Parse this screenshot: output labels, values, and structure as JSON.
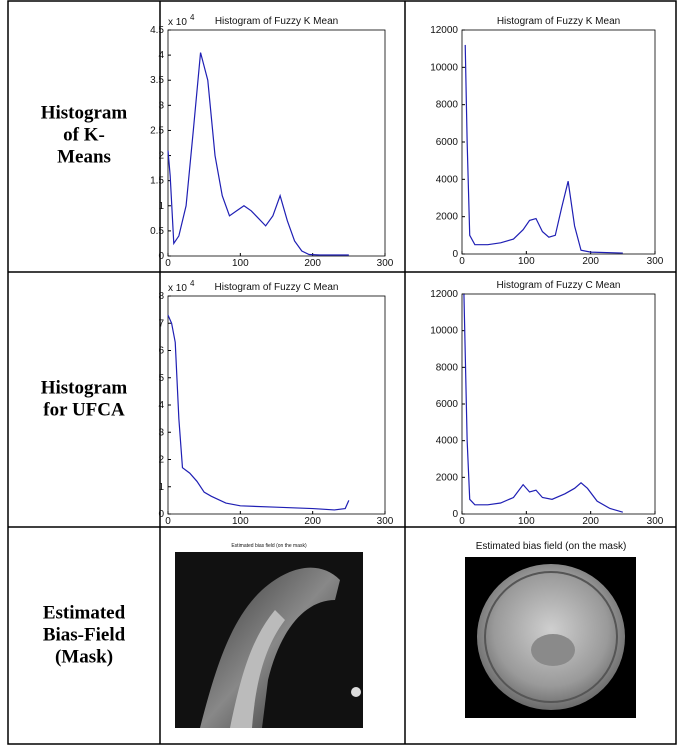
{
  "rows": [
    {
      "label": [
        "Histogram",
        "of K-",
        "Means"
      ],
      "cells": [
        {
          "type": "line",
          "title": "Histogram of Fuzzy K Mean",
          "color": "#1f1fb4",
          "y_offset_label": {
            "base": "x 10",
            "exponent": "4"
          },
          "x": [
            0,
            3,
            8,
            15,
            25,
            35,
            45,
            55,
            65,
            75,
            85,
            95,
            105,
            115,
            125,
            135,
            145,
            155,
            165,
            175,
            185,
            195,
            210,
            230,
            250
          ],
          "values": [
            2.1,
            1.6,
            0.25,
            0.4,
            1.0,
            2.5,
            4.05,
            3.5,
            2.0,
            1.2,
            0.8,
            0.9,
            1.0,
            0.9,
            0.75,
            0.6,
            0.8,
            1.2,
            0.7,
            0.3,
            0.1,
            0.03,
            0.02,
            0.02,
            0.02
          ],
          "xlim": [
            0,
            300
          ],
          "xticks": [
            0,
            100,
            200,
            300
          ],
          "ylim": [
            0,
            4.5
          ],
          "yticks": [
            0,
            0.5,
            1,
            1.5,
            2,
            2.5,
            3,
            3.5,
            4,
            4.5
          ]
        },
        {
          "type": "line",
          "title": "Histogram of Fuzzy K Mean",
          "color": "#1f1fb4",
          "x": [
            5,
            8,
            12,
            20,
            40,
            60,
            80,
            95,
            105,
            115,
            125,
            135,
            145,
            155,
            165,
            175,
            185,
            200,
            250
          ],
          "values": [
            11200,
            6000,
            1000,
            500,
            500,
            600,
            800,
            1300,
            1800,
            1900,
            1200,
            900,
            1000,
            2500,
            3900,
            1500,
            200,
            100,
            50
          ],
          "xlim": [
            0,
            300
          ],
          "xticks": [
            0,
            100,
            200,
            300
          ],
          "ylim": [
            0,
            12000
          ],
          "yticks": [
            0,
            2000,
            4000,
            6000,
            8000,
            10000,
            12000
          ]
        }
      ]
    },
    {
      "label": [
        "Histogram",
        "for UFCA"
      ],
      "cells": [
        {
          "type": "line",
          "title": "Histogram of Fuzzy C Mean",
          "color": "#1f1fb4",
          "y_offset_label": {
            "base": "x 10",
            "exponent": "4"
          },
          "x": [
            0,
            5,
            10,
            15,
            20,
            30,
            40,
            50,
            60,
            80,
            100,
            150,
            200,
            230,
            245,
            250
          ],
          "values": [
            7.3,
            7.0,
            6.3,
            3.5,
            1.7,
            1.5,
            1.2,
            0.8,
            0.65,
            0.4,
            0.3,
            0.25,
            0.2,
            0.15,
            0.2,
            0.5
          ],
          "xlim": [
            0,
            300
          ],
          "xticks": [
            0,
            100,
            200,
            300
          ],
          "ylim": [
            0,
            8
          ],
          "yticks": [
            0,
            1,
            2,
            3,
            4,
            5,
            6,
            7,
            8
          ]
        },
        {
          "type": "line",
          "title": "Histogram of Fuzzy C Mean",
          "color": "#1f1fb4",
          "x": [
            3,
            8,
            12,
            20,
            40,
            60,
            80,
            95,
            105,
            115,
            125,
            140,
            160,
            175,
            185,
            195,
            210,
            230,
            250
          ],
          "values": [
            12000,
            4000,
            800,
            500,
            500,
            600,
            900,
            1600,
            1200,
            1300,
            900,
            800,
            1100,
            1400,
            1700,
            1400,
            700,
            300,
            100
          ],
          "xlim": [
            0,
            300
          ],
          "xticks": [
            0,
            100,
            200,
            300
          ],
          "ylim": [
            0,
            12000
          ],
          "yticks": [
            0,
            2000,
            4000,
            6000,
            8000,
            10000,
            12000
          ]
        }
      ]
    },
    {
      "label": [
        "Estimated",
        "Bias-Field",
        "(Mask)"
      ],
      "cells": [
        {
          "caption": "Estimated bias field (on the mask)"
        },
        {
          "caption": "Estimated bias field (on the mask)"
        }
      ]
    }
  ]
}
